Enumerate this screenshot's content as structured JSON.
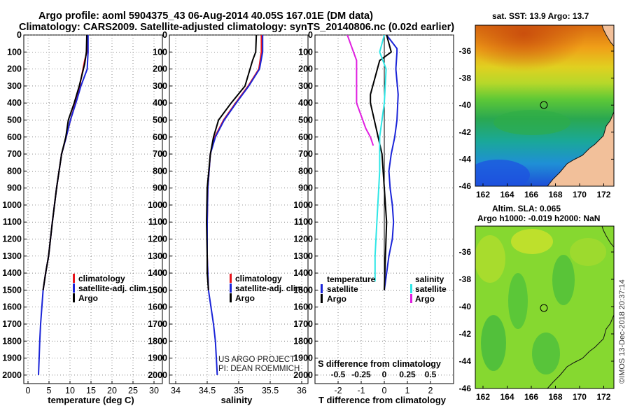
{
  "title": {
    "line1": "Argo profile: aoml 5904375_43 06-Aug-2014 40.05S 167.01E (DM data)",
    "line2": "Climatology: CARS2009. Satellite-adjusted climatology: synTS_20140806.nc (0.02d earlier)"
  },
  "colors": {
    "argo": "#000000",
    "climatology": "#e8141c",
    "satellite": "#1a24d8",
    "sat_salinity": "#2ee6e6",
    "argo_salinity": "#e01ee0"
  },
  "depth_ticks": [
    0,
    100,
    200,
    300,
    400,
    500,
    600,
    700,
    800,
    900,
    1000,
    1100,
    1200,
    1300,
    1400,
    1500,
    1600,
    1700,
    1800,
    1900,
    2000
  ],
  "legend": {
    "climatology": "climatology",
    "satellite": "satellite-adj. clim.",
    "argo": "Argo",
    "temperature_header": "temperature",
    "salinity_header": "salinity",
    "satellite_short": "satellite",
    "argo_short": "Argo"
  },
  "credits": {
    "line1": "US ARGO PROJECT",
    "line2": "PI: DEAN ROEMMICH"
  },
  "watermark": "©IMOS 13-Dec-2018 20:37:14",
  "chart_data": [
    {
      "type": "line",
      "id": "temperature",
      "xlabel": "temperature (deg C)",
      "ylabel": "depth",
      "xlim": [
        -1,
        32
      ],
      "ylim": [
        2050,
        0
      ],
      "xticks": [
        0,
        5,
        10,
        15,
        20,
        25,
        30
      ],
      "series": [
        {
          "name": "climatology",
          "color": "#e8141c",
          "x": [
            14.2,
            14.0,
            13.5,
            12.3,
            11.3,
            10.1,
            9.1,
            8.0,
            6.8,
            5.8,
            4.9,
            4.2,
            3.6
          ],
          "y": [
            0,
            100,
            150,
            300,
            400,
            500,
            600,
            700,
            900,
            1100,
            1300,
            1400,
            1500
          ]
        },
        {
          "name": "satellite-adj. clim.",
          "color": "#1a24d8",
          "x": [
            14.3,
            14.3,
            14.1,
            12.6,
            11.4,
            10.1,
            9.1,
            8.0,
            6.8,
            5.8,
            4.9,
            4.2,
            3.6,
            3.3,
            3.0,
            2.8,
            2.5
          ],
          "y": [
            0,
            100,
            200,
            300,
            400,
            500,
            600,
            700,
            900,
            1100,
            1300,
            1400,
            1500,
            1600,
            1700,
            1800,
            2000
          ]
        },
        {
          "name": "Argo",
          "color": "#000000",
          "x": [
            14.0,
            13.9,
            13.5,
            12.2,
            11.0,
            9.6,
            9.0,
            8.0,
            6.8,
            5.8,
            4.9,
            4.2,
            3.6
          ],
          "y": [
            0,
            100,
            170,
            300,
            400,
            500,
            600,
            700,
            900,
            1100,
            1300,
            1400,
            1500
          ]
        }
      ]
    },
    {
      "type": "line",
      "id": "salinity",
      "xlabel": "salinity",
      "ylabel": "depth",
      "xlim": [
        33.9,
        36.1
      ],
      "ylim": [
        2050,
        0
      ],
      "xticks": [
        34,
        34.5,
        35,
        35.5,
        36
      ],
      "xticklabels": [
        "34",
        "34.5",
        "35",
        "35.5",
        "36"
      ],
      "series": [
        {
          "name": "climatology",
          "color": "#e8141c",
          "x": [
            35.36,
            35.36,
            35.32,
            35.15,
            34.95,
            34.76,
            34.62,
            34.55,
            34.51,
            34.5,
            34.5,
            34.51,
            34.52
          ],
          "y": [
            0,
            100,
            200,
            300,
            400,
            500,
            600,
            700,
            900,
            1100,
            1300,
            1400,
            1500
          ]
        },
        {
          "name": "satellite-adj. clim.",
          "color": "#1a24d8",
          "x": [
            35.38,
            35.38,
            35.33,
            35.16,
            34.96,
            34.77,
            34.63,
            34.55,
            34.51,
            34.5,
            34.5,
            34.51,
            34.52,
            34.56,
            34.6,
            34.63,
            34.66
          ],
          "y": [
            0,
            100,
            200,
            300,
            400,
            500,
            600,
            700,
            900,
            1100,
            1300,
            1400,
            1500,
            1600,
            1700,
            1800,
            2000
          ]
        },
        {
          "name": "Argo",
          "color": "#000000",
          "x": [
            35.28,
            35.27,
            35.22,
            35.1,
            34.88,
            34.68,
            34.6,
            34.55,
            34.5,
            34.49,
            34.5,
            34.5,
            34.52
          ],
          "y": [
            0,
            100,
            150,
            300,
            400,
            500,
            600,
            700,
            900,
            1100,
            1300,
            1400,
            1500
          ]
        }
      ]
    },
    {
      "type": "line",
      "id": "difference",
      "xlabel": "T difference from climatology",
      "xlabel2": "S difference from climatology",
      "ylabel": "depth",
      "xlim": [
        -3,
        3
      ],
      "ylim": [
        2050,
        0
      ],
      "xticks": [
        -2,
        -1,
        0,
        1,
        2
      ],
      "s_ticks": [
        -0.5,
        -0.25,
        0,
        0.25,
        0.5
      ],
      "s_ticklabels": [
        "-0.5",
        "-0.25",
        "0",
        "0.25",
        "0.5"
      ],
      "series": [
        {
          "name": "T satellite",
          "color": "#1a24d8",
          "x": [
            0.1,
            0.55,
            0.55,
            0.5,
            0.6,
            0.55,
            0.45,
            0.3,
            0.2,
            0.25,
            0.35,
            0.4,
            0.35,
            0.2,
            0.0
          ],
          "y": [
            0,
            80,
            100,
            200,
            350,
            500,
            600,
            700,
            800,
            900,
            1000,
            1100,
            1200,
            1300,
            1500
          ]
        },
        {
          "name": "T Argo",
          "color": "#000000",
          "x": [
            0.1,
            0.3,
            -0.2,
            -0.6,
            -0.6,
            -0.1,
            0.0,
            0.05,
            0.1,
            0.05,
            0.0
          ],
          "y": [
            0,
            100,
            150,
            350,
            400,
            700,
            900,
            1000,
            1100,
            1300,
            1500
          ]
        },
        {
          "name": "S satellite",
          "color": "#2ee6e6",
          "x": [
            0.0,
            -0.05,
            0.02,
            0.0,
            -0.05,
            -0.05,
            -0.08,
            -0.1,
            -0.1
          ],
          "y": [
            0,
            100,
            200,
            400,
            600,
            800,
            1100,
            1300,
            1450
          ]
        },
        {
          "name": "S Argo",
          "color": "#e01ee0",
          "x": [
            -0.4,
            -0.3,
            -0.3,
            -0.2,
            -0.15,
            -0.12
          ],
          "y": [
            0,
            150,
            400,
            550,
            600,
            650
          ]
        }
      ]
    }
  ],
  "maps": [
    {
      "id": "sst",
      "caption": "sat. SST: 13.9 Argo: 13.7",
      "xticks": [
        "162",
        "164",
        "166",
        "168",
        "170",
        "172"
      ],
      "yticks": [
        "-36",
        "-38",
        "-40",
        "-42",
        "-44",
        "-46"
      ]
    },
    {
      "id": "sla",
      "caption1": "Altim. SLA: 0.065",
      "caption2": "Argo h1000: -0.019 h2000: NaN",
      "xticks": [
        "162",
        "164",
        "166",
        "168",
        "170",
        "172"
      ],
      "yticks": [
        "-36",
        "-38",
        "-40",
        "-42",
        "-44",
        "-46"
      ]
    }
  ]
}
